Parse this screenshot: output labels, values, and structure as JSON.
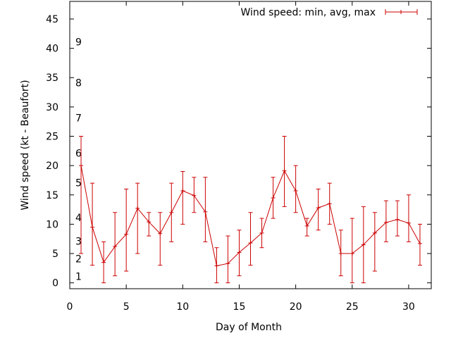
{
  "chart_data": {
    "type": "line",
    "xlabel": "Day of Month",
    "ylabel": "Wind speed (kt - Beaufort)",
    "xlim": [
      0,
      32
    ],
    "ylim": [
      -1,
      48
    ],
    "xticks": [
      0,
      5,
      10,
      15,
      20,
      25,
      30
    ],
    "yticks": [
      0,
      5,
      10,
      15,
      20,
      25,
      30,
      35,
      40,
      45
    ],
    "grid": false,
    "legend_position": "top-right",
    "series": [
      {
        "name": "Wind speed: min, avg, max",
        "color": "#cc0000",
        "x": [
          1,
          2,
          3,
          4,
          5,
          6,
          7,
          8,
          9,
          10,
          11,
          12,
          13,
          14,
          15,
          16,
          17,
          18,
          19,
          20,
          21,
          22,
          23,
          24,
          25,
          26,
          27,
          28,
          29,
          30,
          31
        ],
        "avg": [
          20,
          9.5,
          3.5,
          6.2,
          8.3,
          12.7,
          10.4,
          8.4,
          12,
          15.7,
          14.9,
          12.1,
          2.9,
          3.3,
          5.2,
          6.8,
          8.5,
          14.5,
          19.1,
          15.7,
          9.7,
          12.8,
          13.5,
          5,
          5,
          6.5,
          8.5,
          10.3,
          10.8,
          10.2,
          6.7
        ],
        "min": [
          5,
          3,
          0,
          1.2,
          2,
          5,
          8,
          3,
          7,
          10,
          12,
          7,
          0,
          0,
          1.2,
          3,
          6,
          11,
          13,
          12,
          8,
          9,
          10,
          1.2,
          0,
          0,
          2,
          7,
          8,
          7,
          3
        ],
        "max": [
          25,
          17,
          7,
          12,
          16,
          17,
          12,
          12,
          17,
          19,
          18,
          18,
          6,
          8,
          9,
          12,
          11,
          18,
          25,
          20,
          11,
          16,
          17,
          9,
          11,
          13,
          12,
          14,
          14,
          15,
          10
        ]
      }
    ],
    "annotations": [
      {
        "text": "1",
        "y": 1.1
      },
      {
        "text": "2",
        "y": 4.1
      },
      {
        "text": "3",
        "y": 7.1
      },
      {
        "text": "4",
        "y": 11.1
      },
      {
        "text": "5",
        "y": 17.1
      },
      {
        "text": "6",
        "y": 22.1
      },
      {
        "text": "7",
        "y": 28.1
      },
      {
        "text": "8",
        "y": 34.1
      },
      {
        "text": "9",
        "y": 41.1
      }
    ]
  }
}
